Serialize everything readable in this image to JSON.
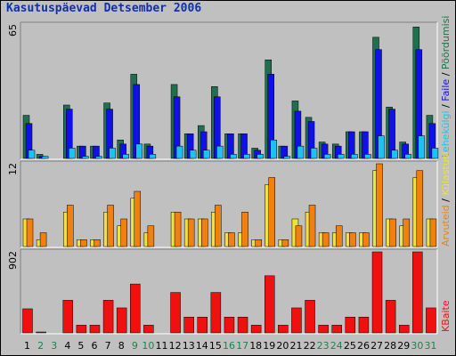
{
  "chart_data": [
    {
      "type": "bar",
      "title": "Kasutuspäevad Detsember 2006",
      "categories": [
        "1",
        "2",
        "3",
        "4",
        "5",
        "6",
        "7",
        "8",
        "9",
        "10",
        "11",
        "12",
        "13",
        "14",
        "15",
        "16",
        "17",
        "18",
        "19",
        "20",
        "21",
        "22",
        "23",
        "24",
        "25",
        "26",
        "27",
        "28",
        "29",
        "30",
        "31"
      ],
      "weekend_days": [
        "2",
        "3",
        "9",
        "10",
        "16",
        "17",
        "23",
        "24",
        "30",
        "31"
      ],
      "ylim": [
        0,
        65
      ],
      "ytick_label": "65",
      "series": [
        {
          "name": "Pöördumisi",
          "color": "#207050",
          "values": [
            21,
            2,
            0,
            26,
            6,
            6,
            27,
            9,
            41,
            7,
            0,
            36,
            12,
            16,
            35,
            12,
            12,
            5,
            48,
            6,
            28,
            20,
            8,
            7,
            13,
            13,
            59,
            25,
            8,
            64,
            21
          ]
        },
        {
          "name": "Faile",
          "color": "#1010e8",
          "values": [
            17,
            1,
            0,
            24,
            6,
            6,
            24,
            7,
            36,
            6,
            0,
            30,
            12,
            13,
            30,
            12,
            12,
            4,
            41,
            6,
            23,
            18,
            7,
            6,
            13,
            13,
            53,
            24,
            7,
            53,
            17
          ]
        },
        {
          "name": "Lehekülgi",
          "color": "#20c0f0",
          "values": [
            4,
            1,
            0,
            5,
            1,
            1,
            5,
            2,
            7,
            2,
            0,
            6,
            4,
            4,
            6,
            2,
            2,
            2,
            9,
            1,
            6,
            5,
            2,
            2,
            2,
            2,
            11,
            4,
            2,
            11,
            5
          ]
        }
      ]
    },
    {
      "type": "bar",
      "ylim": [
        0,
        12
      ],
      "ytick_label": "12",
      "categories": [
        "1",
        "2",
        "3",
        "4",
        "5",
        "6",
        "7",
        "8",
        "9",
        "10",
        "11",
        "12",
        "13",
        "14",
        "15",
        "16",
        "17",
        "18",
        "19",
        "20",
        "21",
        "22",
        "23",
        "24",
        "25",
        "26",
        "27",
        "28",
        "29",
        "30",
        "31"
      ],
      "series": [
        {
          "name": "Külastusi",
          "color": "#f0e040",
          "values": [
            4,
            1,
            0,
            5,
            1,
            1,
            5,
            3,
            7,
            2,
            0,
            5,
            4,
            4,
            5,
            2,
            2,
            1,
            9,
            1,
            4,
            5,
            2,
            2,
            2,
            2,
            11,
            4,
            3,
            10,
            4
          ]
        },
        {
          "name": "Arvuteid",
          "color": "#f08010",
          "values": [
            4,
            2,
            0,
            6,
            1,
            1,
            6,
            4,
            8,
            3,
            0,
            5,
            4,
            4,
            6,
            2,
            5,
            1,
            10,
            1,
            3,
            6,
            2,
            3,
            2,
            2,
            12,
            4,
            4,
            11,
            4
          ]
        }
      ]
    },
    {
      "type": "bar",
      "ylim": [
        0,
        902
      ],
      "ytick_label": "902",
      "categories": [
        "1",
        "2",
        "3",
        "4",
        "5",
        "6",
        "7",
        "8",
        "9",
        "10",
        "11",
        "12",
        "13",
        "14",
        "15",
        "16",
        "17",
        "18",
        "19",
        "20",
        "21",
        "22",
        "23",
        "24",
        "25",
        "26",
        "27",
        "28",
        "29",
        "30",
        "31"
      ],
      "series": [
        {
          "name": "KBaite",
          "color": "#f01010",
          "values": [
            268,
            8,
            0,
            363,
            86,
            86,
            363,
            278,
            544,
            86,
            0,
            450,
            176,
            176,
            450,
            176,
            176,
            86,
            636,
            86,
            278,
            363,
            86,
            86,
            176,
            176,
            902,
            363,
            86,
            902,
            278
          ]
        }
      ]
    }
  ],
  "colors": {
    "panel_background": "#c0c0c0",
    "weekday_label": "#000000",
    "weekend_label": "#208050"
  }
}
